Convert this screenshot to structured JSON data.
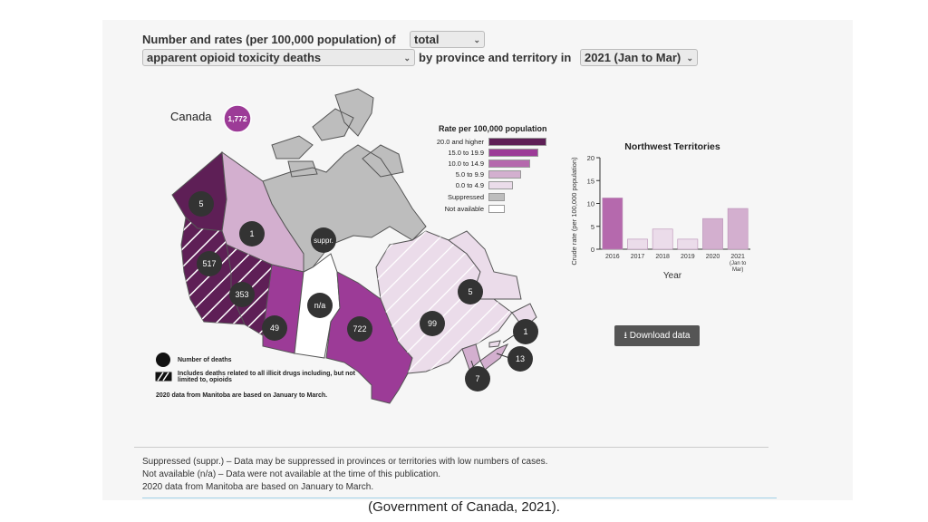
{
  "header": {
    "line1_prefix": "Number and rates (per 100,000 population) of",
    "measure_select": "total",
    "outcome_select": "apparent opioid toxicity deaths",
    "line2_middle": "by province and territory in",
    "period_select": "2021 (Jan to Mar)"
  },
  "map": {
    "national_label": "Canada",
    "national_count": "1,772",
    "regions": [
      {
        "id": "yt",
        "count": "5",
        "color": "#5e1f56"
      },
      {
        "id": "nt",
        "count": "1",
        "color": "#d3afcf"
      },
      {
        "id": "nu",
        "count": "suppr.",
        "color": "#bdbdbd"
      },
      {
        "id": "bc",
        "count": "517",
        "color": "#5e1f56"
      },
      {
        "id": "ab",
        "count": "353",
        "color": "#5e1f56"
      },
      {
        "id": "sk",
        "count": "49",
        "color": "#9c3b97"
      },
      {
        "id": "mb",
        "count": "n/a",
        "color": "#ffffff"
      },
      {
        "id": "on",
        "count": "722",
        "color": "#9c3b97"
      },
      {
        "id": "qc",
        "count": "99",
        "color": "#ebdcea"
      },
      {
        "id": "nl",
        "count": "5",
        "color": "#ebdcea"
      },
      {
        "id": "pe",
        "count": "1",
        "color": "#ebdcea"
      },
      {
        "id": "ns",
        "count": "13",
        "color": "#d3afcf"
      },
      {
        "id": "nb",
        "count": "7",
        "color": "#d3afcf"
      }
    ],
    "legend": {
      "title": "Rate per 100,000 population",
      "items": [
        {
          "label": "20.0 and higher",
          "color": "#5e1f56"
        },
        {
          "label": "15.0 to 19.9",
          "color": "#9c3b97"
        },
        {
          "label": "10.0 to 14.9",
          "color": "#b569ad"
        },
        {
          "label": "5.0 to 9.9",
          "color": "#d3afcf"
        },
        {
          "label": "0.0 to 4.9",
          "color": "#ebdcea"
        },
        {
          "label": "Suppressed",
          "color": "#bdbdbd"
        },
        {
          "label": "Not available",
          "color": "#ffffff"
        }
      ]
    },
    "notes": {
      "deaths_key": "Number of deaths",
      "hatch_key": "Includes deaths related to all illicit drugs including, but not limited to, opioids",
      "manitoba": "2020 data from Manitoba are based on January to March."
    }
  },
  "chart_data": {
    "type": "bar",
    "title": "Northwest Territories",
    "xlabel": "Year",
    "ylabel": "Crude rate (per 100,000 population)",
    "categories": [
      "2016",
      "2017",
      "2018",
      "2019",
      "2020",
      "2021 (Jan to Mar)"
    ],
    "values": [
      11.2,
      2.2,
      4.4,
      2.2,
      6.7,
      8.9
    ],
    "colors": [
      "#b569ad",
      "#ebdcea",
      "#ebdcea",
      "#ebdcea",
      "#d3afcf",
      "#d3afcf"
    ],
    "ylim": [
      0,
      20
    ],
    "yticks": [
      0,
      5,
      10,
      15,
      20
    ]
  },
  "download_label": "Download data",
  "footnotes": [
    "Suppressed (suppr.) – Data may be suppressed in provinces or territories with low numbers of cases.",
    "Not available (n/a) – Data were not available at the time of this publication.",
    "2020 data from Manitoba are based on January to March."
  ],
  "caption": "(Government of Canada, 2021)."
}
